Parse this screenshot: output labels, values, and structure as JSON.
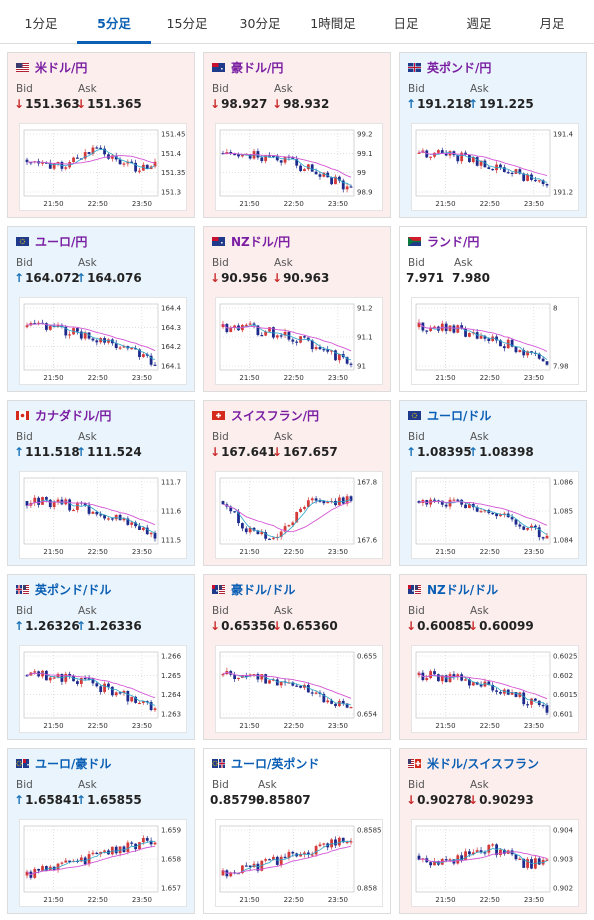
{
  "tabs": [
    "1分足",
    "5分足",
    "15分足",
    "30分足",
    "1時間足",
    "日足",
    "週足",
    "月足"
  ],
  "active_tab": 1,
  "labels": {
    "bid": "Bid",
    "ask": "Ask"
  },
  "time_labels": [
    "21:50",
    "22:50",
    "23:50"
  ],
  "cards": [
    {
      "name": "米ドル/円",
      "flag": "us-flag",
      "bg": "red",
      "dir": "down",
      "bid": "151.363",
      "ask": "151.365",
      "yticks": [
        "151.45",
        "151.4",
        "151.35",
        "151.3"
      ],
      "trend": "flat",
      "name_color": "purple"
    },
    {
      "name": "豪ドル/円",
      "flag": "au-flag",
      "bg": "red",
      "dir": "down",
      "bid": "98.927",
      "ask": "98.932",
      "yticks": [
        "99.2",
        "99.1",
        "99",
        "98.9"
      ],
      "trend": "down",
      "name_color": "purple"
    },
    {
      "name": "英ポンド/円",
      "flag": "uk-flag",
      "bg": "blue",
      "dir": "up",
      "bid": "191.218",
      "ask": "191.225",
      "yticks": [
        "191.4",
        "191.2"
      ],
      "trend": "down",
      "name_color": "purple"
    },
    {
      "name": "ユーロ/円",
      "flag": "eu-flag",
      "bg": "blue",
      "dir": "up",
      "bid": "164.072",
      "ask": "164.076",
      "yticks": [
        "164.4",
        "164.3",
        "164.2",
        "164.1"
      ],
      "trend": "down",
      "name_color": "purple"
    },
    {
      "name": "NZドル/円",
      "flag": "nz-flag",
      "bg": "red",
      "dir": "down",
      "bid": "90.956",
      "ask": "90.963",
      "yticks": [
        "91.2",
        "91.1",
        "91"
      ],
      "trend": "down",
      "name_color": "purple"
    },
    {
      "name": "ランド/円",
      "flag": "za-flag",
      "bg": "white",
      "dir": "none",
      "bid": "7.971",
      "ask": "7.980",
      "yticks": [
        "8",
        "7.98"
      ],
      "trend": "down",
      "name_color": "purple"
    },
    {
      "name": "カナダドル/円",
      "flag": "ca-flag",
      "bg": "blue",
      "dir": "up",
      "bid": "111.518",
      "ask": "111.524",
      "yticks": [
        "111.7",
        "111.6",
        "111.5"
      ],
      "trend": "down",
      "name_color": "purple"
    },
    {
      "name": "スイスフラン/円",
      "flag": "ch-flag",
      "bg": "red",
      "dir": "down",
      "bid": "167.641",
      "ask": "167.657",
      "yticks": [
        "167.8",
        "167.6"
      ],
      "trend": "vee",
      "name_color": "purple"
    },
    {
      "name": "ユーロ/ドル",
      "flag": "eu-flag",
      "bg": "blue",
      "dir": "up",
      "bid": "1.08395",
      "ask": "1.08398",
      "yticks": [
        "1.086",
        "1.085",
        "1.084"
      ],
      "trend": "down",
      "name_color": "blue"
    },
    {
      "name": "英ポンド/ドル",
      "flag": "uk-us-flag",
      "bg": "blue",
      "dir": "up",
      "bid": "1.26326",
      "ask": "1.26336",
      "yticks": [
        "1.266",
        "1.265",
        "1.264",
        "1.263"
      ],
      "trend": "down",
      "name_color": "blue"
    },
    {
      "name": "豪ドル/ドル",
      "flag": "au-us-flag",
      "bg": "red",
      "dir": "down",
      "bid": "0.65356",
      "ask": "0.65360",
      "yticks": [
        "0.655",
        "0.654"
      ],
      "trend": "down",
      "name_color": "blue"
    },
    {
      "name": "NZドル/ドル",
      "flag": "nz-us-flag",
      "bg": "red",
      "dir": "down",
      "bid": "0.60085",
      "ask": "0.60099",
      "yticks": [
        "0.6025",
        "0.602",
        "0.6015",
        "0.601"
      ],
      "trend": "down",
      "name_color": "blue"
    },
    {
      "name": "ユーロ/豪ドル",
      "flag": "eu-au-flag",
      "bg": "blue",
      "dir": "up",
      "bid": "1.65841",
      "ask": "1.65855",
      "yticks": [
        "1.659",
        "1.658",
        "1.657"
      ],
      "trend": "up",
      "name_color": "blue"
    },
    {
      "name": "ユーロ/英ポンド",
      "flag": "eu-uk-flag",
      "bg": "white",
      "dir": "none",
      "bid": "0.85799",
      "ask": "0.85807",
      "yticks": [
        "0.8585",
        "0.858"
      ],
      "trend": "up",
      "name_color": "blue"
    },
    {
      "name": "米ドル/スイスフラン",
      "flag": "us-ch-flag",
      "bg": "red",
      "dir": "down",
      "bid": "0.90278",
      "ask": "0.90293",
      "yticks": [
        "0.904",
        "0.903",
        "0.902"
      ],
      "trend": "flat",
      "name_color": "blue"
    }
  ],
  "colors": {
    "up_candle": "#d43a3a",
    "down_candle": "#1d2a8c",
    "ma_line": "#d455d4",
    "ma2_line": "#2aa6c9",
    "up_arrow": "#1a72b8",
    "down_arrow": "#c92b2b"
  }
}
